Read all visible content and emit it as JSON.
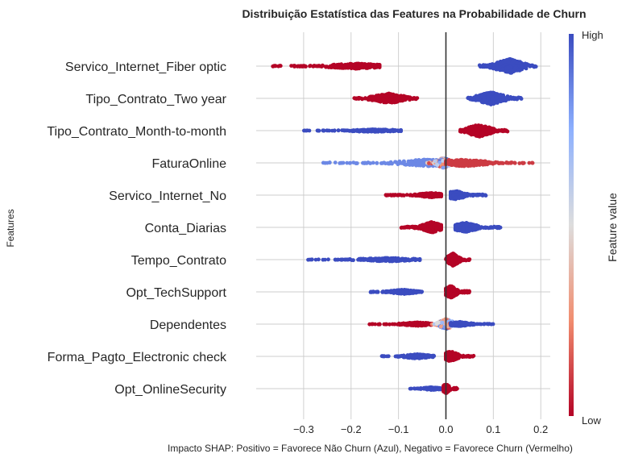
{
  "chart_data": {
    "type": "scatter",
    "subtype": "shap-beeswarm",
    "title": "Distribuição Estatística das Features na Probabilidade de Churn",
    "xlabel": "Impacto SHAP: Positivo = Favorece Não Churn (Azul), Negativo = Favorece Churn (Vermelho)",
    "ylabel": "Features",
    "xlim": [
      -0.4,
      0.22
    ],
    "xticks": [
      -0.3,
      -0.2,
      -0.1,
      0.0,
      0.1,
      0.2
    ],
    "xtick_labels": [
      "−0.3",
      "−0.2",
      "−0.1",
      "0.0",
      "0.1",
      "0.2"
    ],
    "zero_line": 0.0,
    "grid": true,
    "colormap": "coolwarm",
    "colorbar": {
      "title": "Feature value",
      "high_label": "High",
      "low_label": "Low",
      "high_color": "#3b4cc0",
      "mid_color": "#dddddd",
      "low_color": "#b40426"
    },
    "features": [
      {
        "name": "Servico_Internet_Fiber optic",
        "clusters": [
          {
            "min": -0.37,
            "max": -0.14,
            "center": -0.19,
            "value": 0.0,
            "n": 320,
            "spread": 6
          },
          {
            "min": 0.07,
            "max": 0.19,
            "center": 0.135,
            "value": 1.0,
            "n": 360,
            "spread": 16
          }
        ]
      },
      {
        "name": "Tipo_Contrato_Two year",
        "clusters": [
          {
            "min": -0.195,
            "max": -0.06,
            "center": -0.12,
            "value": 0.0,
            "n": 360,
            "spread": 11
          },
          {
            "min": 0.045,
            "max": 0.16,
            "center": 0.095,
            "value": 1.0,
            "n": 320,
            "spread": 14
          }
        ]
      },
      {
        "name": "Tipo_Contrato_Month-to-month",
        "clusters": [
          {
            "min": -0.3,
            "max": -0.095,
            "center": -0.15,
            "value": 1.0,
            "n": 200,
            "spread": 3
          },
          {
            "min": 0.03,
            "max": 0.13,
            "center": 0.07,
            "value": 0.0,
            "n": 260,
            "spread": 14
          }
        ]
      },
      {
        "name": "FaturaOnline",
        "clusters": [
          {
            "min": -0.26,
            "max": -0.02,
            "center": -0.04,
            "value": 0.85,
            "n": 220,
            "spread": 8
          },
          {
            "min": -0.04,
            "max": 0.02,
            "center": -0.005,
            "value": 0.5,
            "n": 160,
            "spread": 12
          },
          {
            "min": 0.0,
            "max": 0.185,
            "center": 0.04,
            "value": 0.1,
            "n": 260,
            "spread": 8
          }
        ]
      },
      {
        "name": "Servico_Internet_No",
        "clusters": [
          {
            "min": -0.13,
            "max": -0.01,
            "center": -0.03,
            "value": 0.0,
            "n": 230,
            "spread": 5
          },
          {
            "min": 0.01,
            "max": 0.09,
            "center": 0.02,
            "value": 1.0,
            "n": 240,
            "spread": 10
          }
        ]
      },
      {
        "name": "Conta_Diarias",
        "clusters": [
          {
            "min": -0.095,
            "max": -0.01,
            "center": -0.03,
            "value": 0.0,
            "n": 280,
            "spread": 12
          },
          {
            "min": 0.02,
            "max": 0.115,
            "center": 0.04,
            "value": 1.0,
            "n": 260,
            "spread": 11
          }
        ]
      },
      {
        "name": "Tempo_Contrato",
        "clusters": [
          {
            "min": -0.295,
            "max": -0.055,
            "center": -0.12,
            "value": 1.0,
            "n": 230,
            "spread": 4
          },
          {
            "min": 0.0,
            "max": 0.05,
            "center": 0.015,
            "value": 0.0,
            "n": 220,
            "spread": 14
          }
        ]
      },
      {
        "name": "Opt_TechSupport",
        "clusters": [
          {
            "min": -0.16,
            "max": -0.05,
            "center": -0.09,
            "value": 1.0,
            "n": 220,
            "spread": 5
          },
          {
            "min": 0.0,
            "max": 0.05,
            "center": 0.01,
            "value": 0.0,
            "n": 220,
            "spread": 14
          }
        ]
      },
      {
        "name": "Dependentes",
        "clusters": [
          {
            "min": -0.165,
            "max": -0.03,
            "center": -0.06,
            "value": 0.0,
            "n": 200,
            "spread": 4
          },
          {
            "min": -0.03,
            "max": 0.03,
            "center": 0.0,
            "value": 0.55,
            "n": 140,
            "spread": 12
          },
          {
            "min": 0.01,
            "max": 0.1,
            "center": 0.03,
            "value": 1.0,
            "n": 160,
            "spread": 5
          }
        ]
      },
      {
        "name": "Forma_Pagto_Electronic check",
        "clusters": [
          {
            "min": -0.135,
            "max": -0.025,
            "center": -0.06,
            "value": 1.0,
            "n": 180,
            "spread": 5
          },
          {
            "min": 0.0,
            "max": 0.06,
            "center": 0.01,
            "value": 0.0,
            "n": 180,
            "spread": 12
          }
        ]
      },
      {
        "name": "Opt_OnlineSecurity",
        "clusters": [
          {
            "min": -0.08,
            "max": 0.0,
            "center": -0.03,
            "value": 1.0,
            "n": 160,
            "spread": 3
          },
          {
            "min": -0.005,
            "max": 0.025,
            "center": 0.0,
            "value": 0.0,
            "n": 120,
            "spread": 11
          }
        ]
      }
    ]
  }
}
